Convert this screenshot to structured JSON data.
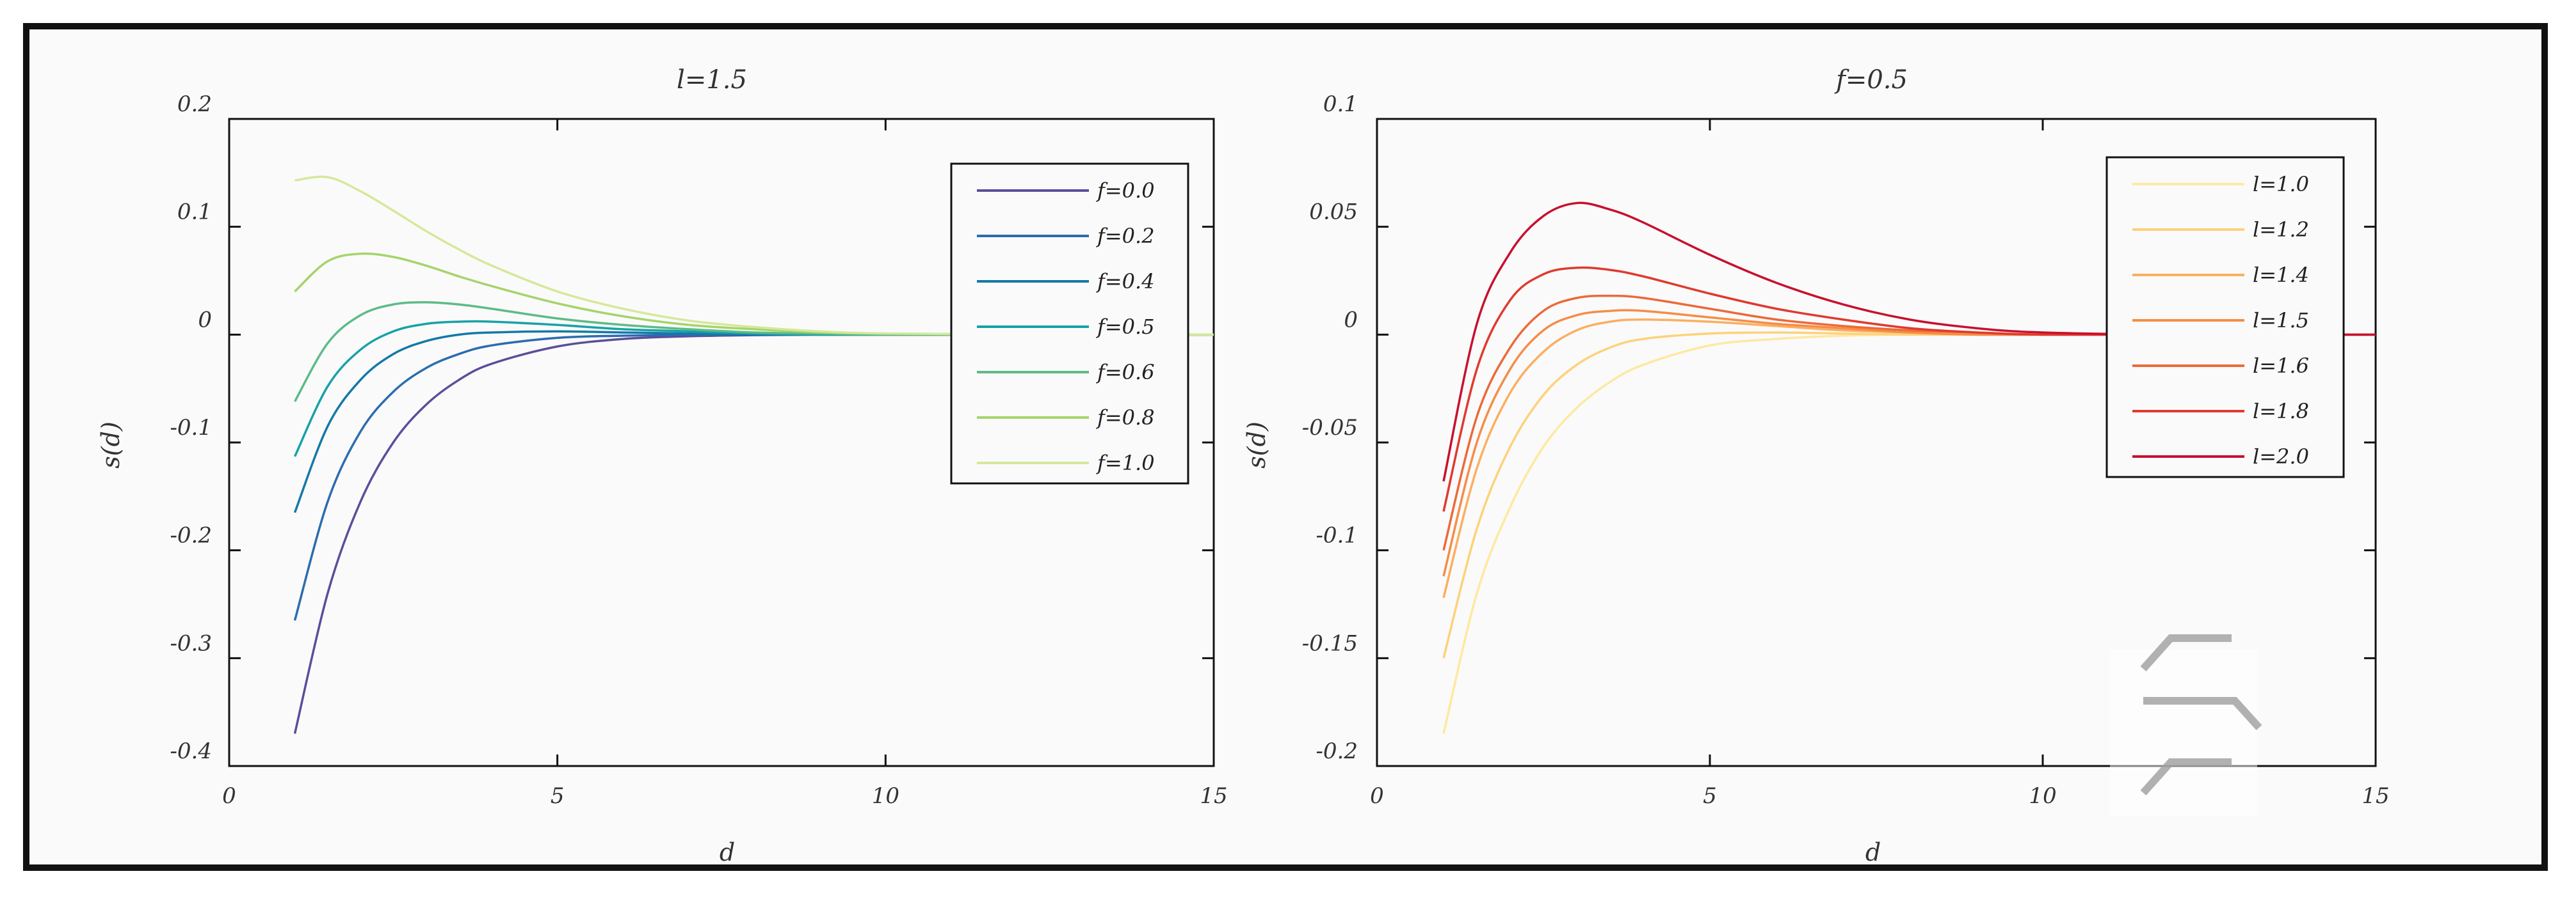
{
  "chart_data": [
    {
      "type": "line",
      "title": "l=1.5",
      "xlabel": "d",
      "ylabel": "s(d)",
      "xlim": [
        0,
        15
      ],
      "ylim": [
        -0.4,
        0.2
      ],
      "xticks": [
        "0",
        "5",
        "10",
        "15"
      ],
      "yticks": [
        "0.2",
        "0.1",
        "0",
        "-0.1",
        "-0.2",
        "-0.3",
        "-0.4"
      ],
      "legend_position": "top-right",
      "x": [
        1,
        1.5,
        2,
        2.5,
        3,
        3.5,
        4,
        5,
        6,
        7,
        8,
        9,
        10,
        12,
        15
      ],
      "series": [
        {
          "name": "f=0.0",
          "color": "#5b4e9a",
          "values": [
            -0.37,
            -0.24,
            -0.155,
            -0.1,
            -0.065,
            -0.042,
            -0.027,
            -0.011,
            -0.004,
            -0.0015,
            -0.0005,
            0,
            0,
            0,
            0
          ]
        },
        {
          "name": "f=0.2",
          "color": "#2b6cb0",
          "values": [
            -0.265,
            -0.155,
            -0.09,
            -0.053,
            -0.031,
            -0.018,
            -0.01,
            -0.003,
            -0.001,
            0,
            0,
            0,
            0,
            0,
            0
          ]
        },
        {
          "name": "f=0.4",
          "color": "#1479a8",
          "values": [
            -0.165,
            -0.085,
            -0.042,
            -0.018,
            -0.006,
            0,
            0.002,
            0.003,
            0.002,
            0.001,
            0,
            0,
            0,
            0,
            0
          ]
        },
        {
          "name": "f=0.5",
          "color": "#17a2a8",
          "values": [
            -0.113,
            -0.048,
            -0.014,
            0.003,
            0.01,
            0.012,
            0.012,
            0.009,
            0.005,
            0.003,
            0.001,
            0,
            0,
            0,
            0
          ]
        },
        {
          "name": "f=0.6",
          "color": "#5dbb87",
          "values": [
            -0.062,
            -0.008,
            0.018,
            0.028,
            0.03,
            0.028,
            0.024,
            0.015,
            0.009,
            0.005,
            0.002,
            0.001,
            0,
            0,
            0
          ]
        },
        {
          "name": "f=0.8",
          "color": "#a5d46a",
          "values": [
            0.04,
            0.068,
            0.075,
            0.072,
            0.064,
            0.054,
            0.045,
            0.029,
            0.017,
            0.009,
            0.005,
            0.002,
            0.001,
            0,
            0
          ]
        },
        {
          "name": "f=1.0",
          "color": "#d5e89a",
          "values": [
            0.143,
            0.146,
            0.133,
            0.115,
            0.096,
            0.079,
            0.064,
            0.04,
            0.024,
            0.013,
            0.007,
            0.003,
            0.001,
            0,
            0
          ]
        }
      ]
    },
    {
      "type": "line",
      "title": "f=0.5",
      "xlabel": "d",
      "ylabel": "s(d)",
      "xlim": [
        0,
        15
      ],
      "ylim": [
        -0.2,
        0.1
      ],
      "xticks": [
        "0",
        "5",
        "10",
        "15"
      ],
      "yticks": [
        "0.1",
        "0.05",
        "0",
        "-0.05",
        "-0.1",
        "-0.15",
        "-0.2"
      ],
      "legend_position": "top-right",
      "x": [
        1,
        1.5,
        2,
        2.5,
        3,
        3.5,
        4,
        5,
        6,
        7,
        8,
        9,
        10,
        12,
        15
      ],
      "series": [
        {
          "name": "l=1.0",
          "color": "#fde9a0",
          "values": [
            -0.185,
            -0.12,
            -0.08,
            -0.052,
            -0.034,
            -0.022,
            -0.014,
            -0.005,
            -0.002,
            -0.0005,
            0,
            0,
            0,
            0,
            0
          ]
        },
        {
          "name": "l=1.2",
          "color": "#fdd27a",
          "values": [
            -0.15,
            -0.09,
            -0.052,
            -0.028,
            -0.014,
            -0.006,
            -0.002,
            0.0005,
            0.001,
            0.0005,
            0,
            0,
            0,
            0,
            0
          ]
        },
        {
          "name": "l=1.4",
          "color": "#fcae60",
          "values": [
            -0.122,
            -0.062,
            -0.027,
            -0.008,
            0.002,
            0.006,
            0.007,
            0.006,
            0.004,
            0.002,
            0.001,
            0,
            0,
            0,
            0
          ]
        },
        {
          "name": "l=1.5",
          "color": "#f58d47",
          "values": [
            -0.112,
            -0.05,
            -0.016,
            0.002,
            0.009,
            0.011,
            0.011,
            0.008,
            0.005,
            0.003,
            0.001,
            0,
            0,
            0,
            0
          ]
        },
        {
          "name": "l=1.6",
          "color": "#ec6a3a",
          "values": [
            -0.1,
            -0.038,
            -0.006,
            0.011,
            0.017,
            0.018,
            0.017,
            0.012,
            0.007,
            0.004,
            0.002,
            0.001,
            0,
            0,
            0
          ]
        },
        {
          "name": "l=1.8",
          "color": "#e03a2f",
          "values": [
            -0.082,
            -0.016,
            0.016,
            0.028,
            0.031,
            0.03,
            0.027,
            0.019,
            0.012,
            0.007,
            0.003,
            0.001,
            0,
            0,
            0
          ]
        },
        {
          "name": "l=2.0",
          "color": "#c8102e",
          "values": [
            -0.068,
            0.005,
            0.038,
            0.055,
            0.061,
            0.058,
            0.052,
            0.037,
            0.024,
            0.014,
            0.007,
            0.003,
            0.001,
            0,
            0
          ]
        }
      ]
    }
  ]
}
